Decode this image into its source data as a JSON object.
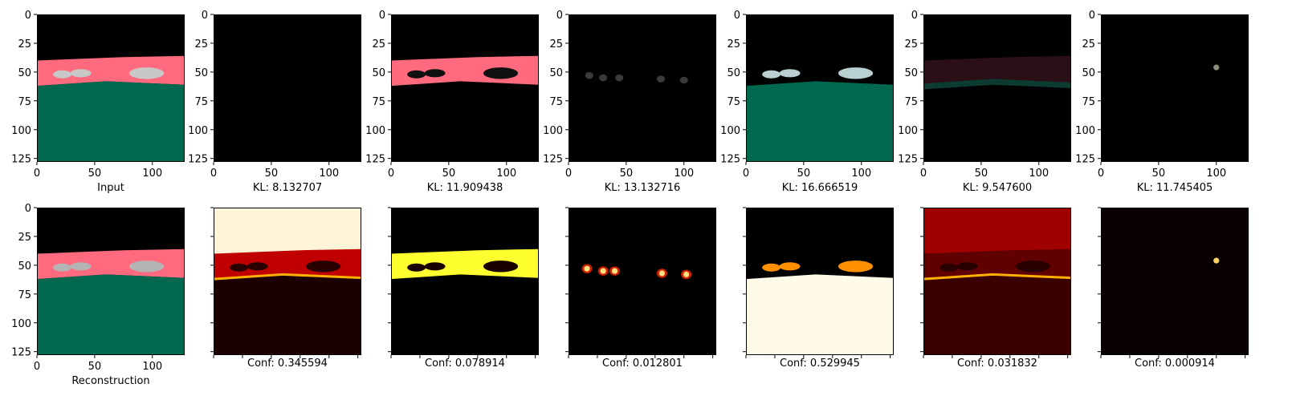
{
  "chart_data": [
    {
      "type": "image",
      "panel": "input",
      "caption": "Input",
      "scene": {
        "fill": "rgb-full",
        "sky": "#000000",
        "road": "#ff6a7f",
        "ground": "#00684f",
        "cars": "#c8c8c8"
      },
      "xticks": [
        0,
        50,
        100
      ],
      "yticks": [
        0,
        25,
        50,
        75,
        100,
        125
      ],
      "xlim": [
        0,
        128
      ],
      "ylim": [
        128,
        0
      ]
    },
    {
      "type": "image",
      "panel": "component-1",
      "caption": "KL: 8.132707",
      "scene": {
        "fill": "black"
      },
      "xticks": [
        0,
        50,
        100
      ],
      "yticks": [
        0,
        25,
        50,
        75,
        100,
        125
      ],
      "xlim": [
        0,
        128
      ],
      "ylim": [
        128,
        0
      ]
    },
    {
      "type": "image",
      "panel": "component-2",
      "caption": "KL: 11.909438",
      "scene": {
        "fill": "road-only",
        "road": "#ff6a7f",
        "cars": "#101010"
      },
      "xticks": [
        0,
        50,
        100
      ],
      "yticks": [
        0,
        25,
        50,
        75,
        100,
        125
      ],
      "xlim": [
        0,
        128
      ],
      "ylim": [
        128,
        0
      ]
    },
    {
      "type": "image",
      "panel": "component-3",
      "caption": "KL: 13.132716",
      "scene": {
        "fill": "car-blobs",
        "cars": "#3a3a3a"
      },
      "xticks": [
        0,
        50,
        100
      ],
      "yticks": [
        0,
        25,
        50,
        75,
        100,
        125
      ],
      "xlim": [
        0,
        128
      ],
      "ylim": [
        128,
        0
      ]
    },
    {
      "type": "image",
      "panel": "component-4",
      "caption": "KL: 16.666519",
      "scene": {
        "fill": "ground-cars",
        "ground": "#00684f",
        "cars": "#b8d0d0"
      },
      "xticks": [
        0,
        50,
        100
      ],
      "yticks": [
        0,
        25,
        50,
        75,
        100,
        125
      ],
      "xlim": [
        0,
        128
      ],
      "ylim": [
        128,
        0
      ]
    },
    {
      "type": "image",
      "panel": "component-5",
      "caption": "KL: 9.547600",
      "scene": {
        "fill": "edge-band",
        "band": "#0b3b31",
        "road": "#2a0f17"
      },
      "xticks": [
        0,
        50,
        100
      ],
      "yticks": [
        0,
        25,
        50,
        75,
        100,
        125
      ],
      "xlim": [
        0,
        128
      ],
      "ylim": [
        128,
        0
      ]
    },
    {
      "type": "image",
      "panel": "component-6",
      "caption": "KL: 11.745405",
      "scene": {
        "fill": "dot",
        "dot": "#8a8a7a"
      },
      "xticks": [
        0,
        50,
        100
      ],
      "yticks": [
        0,
        25,
        50,
        75,
        100,
        125
      ],
      "xlim": [
        0,
        128
      ],
      "ylim": [
        128,
        0
      ]
    },
    {
      "type": "image",
      "panel": "reconstruction",
      "caption": "Reconstruction",
      "scene": {
        "fill": "rgb-full-blur",
        "sky": "#000000",
        "road": "#ff6a7f",
        "ground": "#00684f",
        "cars": "#b4b4b4"
      },
      "xticks": [
        0,
        50,
        100
      ],
      "yticks": [
        0,
        25,
        50,
        75,
        100,
        125
      ],
      "xlim": [
        0,
        128
      ],
      "ylim": [
        128,
        0
      ]
    },
    {
      "type": "heatmap",
      "panel": "mask-1",
      "caption": "Conf: 0.345594",
      "colormap": "hot",
      "scene": {
        "fill": "mask-sky",
        "sky": "#fff4d8",
        "road": "#c00000",
        "cars": "#280000",
        "edge": "#ffb000",
        "ground": "#1c0000"
      }
    },
    {
      "type": "heatmap",
      "panel": "mask-2",
      "caption": "Conf: 0.078914",
      "colormap": "hot",
      "scene": {
        "fill": "mask-road",
        "road": "#ffff30",
        "cars": "#180000",
        "ground": "#000000"
      }
    },
    {
      "type": "heatmap",
      "panel": "mask-3",
      "caption": "Conf: 0.012801",
      "colormap": "hot",
      "scene": {
        "fill": "mask-blobs",
        "blob": "#ffe080",
        "halo": "#d02000",
        "ground": "#000000"
      }
    },
    {
      "type": "heatmap",
      "panel": "mask-4",
      "caption": "Conf: 0.529945",
      "colormap": "hot",
      "scene": {
        "fill": "mask-ground",
        "ground": "#fffbe8",
        "cars": "#ff9000",
        "sky": "#000000"
      }
    },
    {
      "type": "heatmap",
      "panel": "mask-5",
      "caption": "Conf: 0.031832",
      "colormap": "hot",
      "scene": {
        "fill": "mask-edges",
        "top": "#a00000",
        "band": "#600000",
        "cars": "#280000",
        "edge": "#ffb000",
        "ground": "#3a0000"
      }
    },
    {
      "type": "heatmap",
      "panel": "mask-6",
      "caption": "Conf: 0.000914",
      "colormap": "hot",
      "scene": {
        "fill": "mask-dot",
        "dot": "#ffd060",
        "ground": "#080000"
      }
    }
  ]
}
